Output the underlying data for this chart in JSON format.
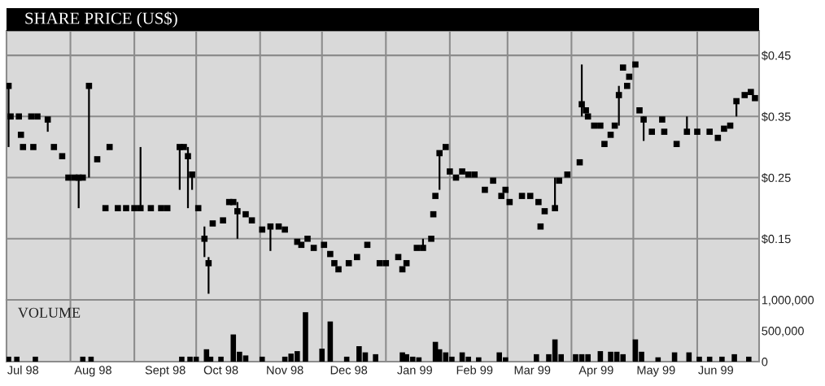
{
  "chart_data": [
    {
      "type": "scatter",
      "title": "SHARE PRICE (US$)",
      "marker": "square",
      "grid": true,
      "tick_labels": "y",
      "xlim": [
        "1998-07-01",
        "1999-07-01"
      ],
      "xticks": [
        {
          "value": "1998-08-01",
          "label": null
        },
        {
          "value": "1998-09-01",
          "label": null
        },
        {
          "value": "1998-10-01",
          "label": null
        },
        {
          "value": "1998-11-01",
          "label": null
        },
        {
          "value": "1998-12-01",
          "label": null
        },
        {
          "value": "1999-01-01",
          "label": null
        },
        {
          "value": "1999-02-01",
          "label": null
        },
        {
          "value": "1999-03-01",
          "label": null
        },
        {
          "value": "1999-04-01",
          "label": null
        },
        {
          "value": "1999-05-01",
          "label": null
        },
        {
          "value": "1999-06-01",
          "label": null
        }
      ],
      "ylim": [
        0.05,
        0.49
      ],
      "yticks": [
        {
          "value": 0.15,
          "label": "$0.15"
        },
        {
          "value": 0.25,
          "label": "$0.25"
        },
        {
          "value": 0.35,
          "label": "$0.35"
        },
        {
          "value": 0.45,
          "label": "$0.45"
        }
      ],
      "series": [
        {
          "color": "#000000",
          "x": [
            "1998-07-02",
            "1998-07-03",
            "1998-07-07",
            "1998-07-08",
            "1998-07-09",
            "1998-07-13",
            "1998-07-14",
            "1998-07-16",
            "1998-07-21",
            "1998-07-24",
            "1998-07-28",
            "1998-07-31",
            "1998-08-03",
            "1998-08-05",
            "1998-08-07",
            "1998-08-10",
            "1998-08-14",
            "1998-08-18",
            "1998-08-20",
            "1998-08-24",
            "1998-08-28",
            "1998-09-01",
            "1998-09-04",
            "1998-09-09",
            "1998-09-14",
            "1998-09-17",
            "1998-09-23",
            "1998-09-25",
            "1998-09-27",
            "1998-09-29",
            "1998-10-02",
            "1998-10-05",
            "1998-10-07",
            "1998-10-09",
            "1998-10-14",
            "1998-10-17",
            "1998-10-19",
            "1998-10-21",
            "1998-10-25",
            "1998-10-28",
            "1998-11-02",
            "1998-11-06",
            "1998-11-10",
            "1998-11-13",
            "1998-11-19",
            "1998-11-21",
            "1998-11-24",
            "1998-11-27",
            "1998-12-02",
            "1998-12-05",
            "1998-12-07",
            "1998-12-09",
            "1998-12-14",
            "1998-12-18",
            "1998-12-23",
            "1998-12-29",
            "1999-01-01",
            "1999-01-07",
            "1999-01-09",
            "1999-01-11",
            "1999-01-16",
            "1999-01-19",
            "1999-01-23",
            "1999-01-24",
            "1999-01-25",
            "1999-01-27",
            "1999-01-30",
            "1999-02-01",
            "1999-02-04",
            "1999-02-07",
            "1999-02-10",
            "1999-02-13",
            "1999-02-18",
            "1999-02-22",
            "1999-02-26",
            "1999-02-28",
            "1999-03-02",
            "1999-03-08",
            "1999-03-12",
            "1999-03-16",
            "1999-03-17",
            "1999-03-19",
            "1999-03-24",
            "1999-03-26",
            "1999-03-30",
            "1999-04-05",
            "1999-04-06",
            "1999-04-08",
            "1999-04-09",
            "1999-04-12",
            "1999-04-15",
            "1999-04-17",
            "1999-04-20",
            "1999-04-22",
            "1999-04-24",
            "1999-04-26",
            "1999-04-28",
            "1999-04-29",
            "1999-05-02",
            "1999-05-04",
            "1999-05-06",
            "1999-05-10",
            "1999-05-15",
            "1999-05-16",
            "1999-05-22",
            "1999-05-27",
            "1999-06-01",
            "1999-06-07",
            "1999-06-11",
            "1999-06-14",
            "1999-06-17",
            "1999-06-20",
            "1999-06-24",
            "1999-06-27",
            "1999-06-29"
          ],
          "values": [
            0.4,
            0.35,
            0.35,
            0.32,
            0.3,
            0.35,
            0.3,
            0.35,
            0.345,
            0.3,
            0.285,
            0.25,
            0.25,
            0.25,
            0.25,
            0.4,
            0.28,
            0.2,
            0.3,
            0.2,
            0.2,
            0.2,
            0.2,
            0.2,
            0.2,
            0.2,
            0.3,
            0.3,
            0.285,
            0.255,
            0.2,
            0.15,
            0.11,
            0.175,
            0.18,
            0.21,
            0.21,
            0.195,
            0.19,
            0.18,
            0.165,
            0.17,
            0.17,
            0.165,
            0.145,
            0.14,
            0.15,
            0.135,
            0.14,
            0.125,
            0.11,
            0.1,
            0.11,
            0.12,
            0.14,
            0.11,
            0.11,
            0.12,
            0.1,
            0.11,
            0.135,
            0.135,
            0.15,
            0.19,
            0.22,
            0.29,
            0.3,
            0.26,
            0.25,
            0.26,
            0.255,
            0.255,
            0.23,
            0.245,
            0.22,
            0.23,
            0.21,
            0.22,
            0.22,
            0.21,
            0.17,
            0.195,
            0.2,
            0.245,
            0.255,
            0.275,
            0.37,
            0.36,
            0.35,
            0.335,
            0.335,
            0.305,
            0.32,
            0.335,
            0.385,
            0.43,
            0.4,
            0.415,
            0.435,
            0.36,
            0.345,
            0.325,
            0.345,
            0.325,
            0.305,
            0.325,
            0.325,
            0.325,
            0.315,
            0.33,
            0.335,
            0.375,
            0.385,
            0.39,
            0.38
          ],
          "errors": [
            [
              0.3,
              0.4
            ],
            null,
            null,
            null,
            null,
            null,
            null,
            null,
            [
              0.325,
              0.345
            ],
            null,
            null,
            null,
            null,
            [
              0.2,
              0.25
            ],
            null,
            [
              0.25,
              0.4
            ],
            null,
            null,
            null,
            null,
            null,
            null,
            [
              0.2,
              0.3
            ],
            null,
            null,
            null,
            [
              0.23,
              0.3
            ],
            null,
            [
              0.2,
              0.3
            ],
            [
              0.23,
              0.255
            ],
            null,
            [
              0.12,
              0.17
            ],
            [
              0.06,
              0.12
            ],
            null,
            null,
            null,
            null,
            [
              0.15,
              0.21
            ],
            null,
            null,
            null,
            [
              0.13,
              0.17
            ],
            null,
            null,
            null,
            null,
            null,
            null,
            null,
            null,
            null,
            null,
            null,
            null,
            null,
            null,
            null,
            null,
            null,
            null,
            null,
            [
              0.135,
              0.15
            ],
            null,
            null,
            null,
            [
              0.23,
              0.29
            ],
            null,
            null,
            null,
            null,
            null,
            null,
            null,
            null,
            null,
            null,
            null,
            null,
            null,
            null,
            null,
            null,
            [
              0.2,
              0.25
            ],
            null,
            null,
            null,
            [
              0.35,
              0.435
            ],
            null,
            null,
            null,
            null,
            null,
            null,
            null,
            [
              0.335,
              0.4
            ],
            null,
            null,
            null,
            null,
            null,
            [
              0.31,
              0.35
            ],
            null,
            null,
            null,
            null,
            [
              0.325,
              0.35
            ],
            null,
            null,
            null,
            null,
            null,
            [
              0.35,
              0.375
            ],
            null,
            null,
            null
          ]
        }
      ]
    },
    {
      "type": "bar",
      "title": "VOLUME",
      "grid": "x",
      "xlim": [
        "1998-07-01",
        "1999-07-01"
      ],
      "xticks": [
        {
          "value": "1998-07-09",
          "label": "Jul 98"
        },
        {
          "value": "1998-08-01",
          "label": null
        },
        {
          "value": "1998-08-12",
          "label": "Aug 98"
        },
        {
          "value": "1998-09-01",
          "label": null
        },
        {
          "value": "1998-09-16",
          "label": "Sept 98"
        },
        {
          "value": "1998-10-01",
          "label": null
        },
        {
          "value": "1998-10-13",
          "label": "Oct 98"
        },
        {
          "value": "1998-11-01",
          "label": null
        },
        {
          "value": "1998-11-13",
          "label": "Nov 98"
        },
        {
          "value": "1998-12-01",
          "label": null
        },
        {
          "value": "1998-12-14",
          "label": "Dec 98"
        },
        {
          "value": "1999-01-01",
          "label": null
        },
        {
          "value": "1999-01-15",
          "label": "Jan 99"
        },
        {
          "value": "1999-02-01",
          "label": null
        },
        {
          "value": "1999-02-13",
          "label": "Feb 99"
        },
        {
          "value": "1999-03-01",
          "label": null
        },
        {
          "value": "1999-03-13",
          "label": "Mar 99"
        },
        {
          "value": "1999-04-01",
          "label": null
        },
        {
          "value": "1999-04-13",
          "label": "Apr 99"
        },
        {
          "value": "1999-05-01",
          "label": null
        },
        {
          "value": "1999-05-12",
          "label": "May 99"
        },
        {
          "value": "1999-06-01",
          "label": null
        },
        {
          "value": "1999-06-10",
          "label": "Jun 99"
        }
      ],
      "ylim": [
        0,
        1000000
      ],
      "yticks": [
        0,
        {
          "value": 500000,
          "label": "500,000"
        },
        {
          "value": 1000000,
          "label": "1,000,000"
        }
      ],
      "series": [
        {
          "color": "#000000",
          "x": [
            "1998-07-02",
            "1998-07-06",
            "1998-07-15",
            "1998-08-07",
            "1998-08-11",
            "1998-09-24",
            "1998-09-28",
            "1998-10-01",
            "1998-10-06",
            "1998-10-08",
            "1998-10-13",
            "1998-10-19",
            "1998-10-22",
            "1998-10-25",
            "1998-11-02",
            "1998-11-13",
            "1998-11-16",
            "1998-11-19",
            "1998-11-23",
            "1998-12-01",
            "1998-12-05",
            "1998-12-13",
            "1998-12-19",
            "1998-12-22",
            "1998-12-27",
            "1999-01-09",
            "1999-01-11",
            "1999-01-14",
            "1999-01-17",
            "1999-01-25",
            "1999-01-27",
            "1999-01-30",
            "1999-02-02",
            "1999-02-07",
            "1999-02-10",
            "1999-02-15",
            "1999-02-25",
            "1999-02-28",
            "1999-03-15",
            "1999-03-21",
            "1999-03-24",
            "1999-03-27",
            "1999-04-03",
            "1999-04-06",
            "1999-04-09",
            "1999-04-15",
            "1999-04-20",
            "1999-04-23",
            "1999-04-26",
            "1999-05-02",
            "1999-05-05",
            "1999-05-13",
            "1999-05-21",
            "1999-05-28",
            "1999-06-02",
            "1999-06-07",
            "1999-06-13",
            "1999-06-19",
            "1999-06-26"
          ],
          "values": [
            80000,
            80000,
            80000,
            80000,
            80000,
            80000,
            80000,
            80000,
            200000,
            80000,
            80000,
            440000,
            160000,
            100000,
            80000,
            80000,
            130000,
            170000,
            800000,
            210000,
            650000,
            80000,
            250000,
            150000,
            120000,
            150000,
            120000,
            80000,
            70000,
            320000,
            200000,
            150000,
            80000,
            150000,
            80000,
            70000,
            150000,
            70000,
            120000,
            120000,
            360000,
            120000,
            120000,
            120000,
            120000,
            170000,
            160000,
            160000,
            120000,
            360000,
            160000,
            70000,
            150000,
            150000,
            80000,
            80000,
            80000,
            120000,
            80000
          ]
        }
      ]
    }
  ]
}
